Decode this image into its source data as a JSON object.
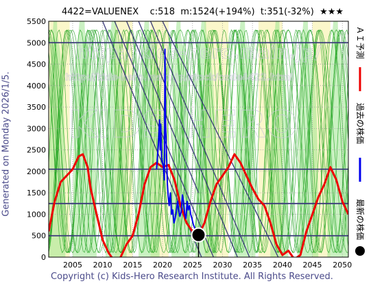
{
  "header": {
    "title": "4422=VALUENEX    c:518  m:1524(+194%)  t:351(-32%)  ★★★"
  },
  "side_text": "Generated on Monday 2026/1/5.",
  "footer": "Copyright (c) Kids-Hero Research Institute. All Rights Reserved.",
  "watermarks": [
    "http://kids-hero.main.jp/",
    "http://kids-hero.main.jp/stock/code4422.html",
    "KIDS HERO"
  ],
  "legend": [
    {
      "label": "ＡＩ予測",
      "color": "#ee0000"
    },
    {
      "label": "過去の株価",
      "color": "#0000ee"
    },
    {
      "label": "最新の株価",
      "color": "#000000"
    }
  ],
  "chart_data": {
    "type": "line",
    "xlim": [
      2001,
      2051
    ],
    "ylim": [
      0,
      5500
    ],
    "xticks": [
      2005,
      2010,
      2015,
      2020,
      2025,
      2030,
      2035,
      2040,
      2045,
      2050
    ],
    "yticks": [
      0,
      500,
      1000,
      1500,
      2000,
      2500,
      3000,
      3500,
      4000,
      4500,
      5000,
      5500
    ],
    "horizontal_levels": [
      500,
      1250,
      2050,
      5000
    ],
    "series": [
      {
        "name": "ＡＩ予測",
        "color": "#ee0000",
        "points": [
          [
            2001,
            600
          ],
          [
            2002,
            1300
          ],
          [
            2003,
            1750
          ],
          [
            2004,
            1900
          ],
          [
            2005,
            2050
          ],
          [
            2006,
            2350
          ],
          [
            2006.7,
            2400
          ],
          [
            2007.5,
            2100
          ],
          [
            2008,
            1600
          ],
          [
            2009,
            1000
          ],
          [
            2010,
            400
          ],
          [
            2011,
            100
          ],
          [
            2012,
            -100
          ],
          [
            2013,
            0
          ],
          [
            2014,
            300
          ],
          [
            2015,
            500
          ],
          [
            2016,
            1000
          ],
          [
            2017,
            1700
          ],
          [
            2018,
            2100
          ],
          [
            2019,
            2200
          ],
          [
            2020,
            2100
          ],
          [
            2021,
            2150
          ],
          [
            2022,
            1800
          ],
          [
            2023,
            1200
          ],
          [
            2024,
            800
          ],
          [
            2025,
            600
          ],
          [
            2026,
            500
          ],
          [
            2027,
            800
          ],
          [
            2028,
            1300
          ],
          [
            2029,
            1700
          ],
          [
            2030,
            1900
          ],
          [
            2031,
            2100
          ],
          [
            2032,
            2400
          ],
          [
            2033,
            2200
          ],
          [
            2034,
            1900
          ],
          [
            2035,
            1600
          ],
          [
            2036,
            1350
          ],
          [
            2037,
            1200
          ],
          [
            2038,
            800
          ],
          [
            2039,
            300
          ],
          [
            2040,
            50
          ],
          [
            2041,
            150
          ],
          [
            2042,
            -50
          ],
          [
            2043,
            50
          ],
          [
            2044,
            600
          ],
          [
            2045,
            1000
          ],
          [
            2046,
            1400
          ],
          [
            2047,
            1700
          ],
          [
            2048,
            2100
          ],
          [
            2049,
            1800
          ],
          [
            2050,
            1300
          ],
          [
            2051,
            1000
          ]
        ]
      },
      {
        "name": "過去の株価",
        "color": "#0000ee",
        "points": [
          [
            2019.0,
            2050
          ],
          [
            2019.3,
            2600
          ],
          [
            2019.5,
            3200
          ],
          [
            2019.6,
            2500
          ],
          [
            2019.7,
            3100
          ],
          [
            2019.85,
            2300
          ],
          [
            2020.0,
            2200
          ],
          [
            2020.15,
            2100
          ],
          [
            2020.3,
            1800
          ],
          [
            2020.4,
            4850
          ],
          [
            2020.5,
            3200
          ],
          [
            2020.6,
            2700
          ],
          [
            2020.7,
            2200
          ],
          [
            2020.8,
            1700
          ],
          [
            2020.95,
            1400
          ],
          [
            2021.1,
            1200
          ],
          [
            2021.3,
            1500
          ],
          [
            2021.5,
            1000
          ],
          [
            2021.7,
            1100
          ],
          [
            2021.9,
            800
          ],
          [
            2022.1,
            900
          ],
          [
            2022.3,
            1050
          ],
          [
            2022.5,
            1300
          ],
          [
            2022.7,
            1100
          ],
          [
            2022.9,
            950
          ],
          [
            2023.1,
            1050
          ],
          [
            2023.3,
            1450
          ],
          [
            2023.5,
            1300
          ],
          [
            2023.7,
            1000
          ],
          [
            2023.9,
            900
          ],
          [
            2024.1,
            1300
          ],
          [
            2024.3,
            1100
          ],
          [
            2024.5,
            1200
          ],
          [
            2024.7,
            1000
          ],
          [
            2024.9,
            900
          ],
          [
            2025.1,
            780
          ],
          [
            2025.3,
            700
          ],
          [
            2025.5,
            640
          ],
          [
            2025.7,
            580
          ],
          [
            2026.0,
            518
          ]
        ]
      }
    ],
    "current_point": {
      "x": 2026,
      "y": 518,
      "label": "最新の株価"
    }
  }
}
